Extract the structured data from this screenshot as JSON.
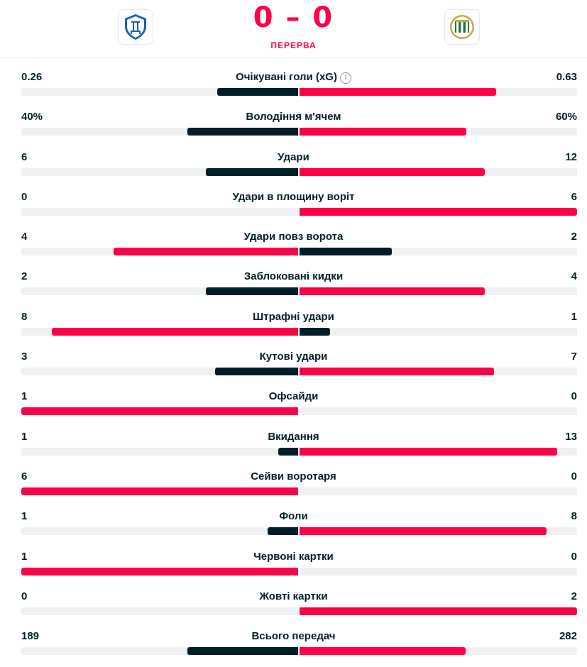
{
  "header": {
    "score": "0 – 0",
    "status": "ПЕРЕРВА",
    "home_logo": "dynamo-kyiv-logo-icon",
    "away_logo": "ferencvaros-logo-icon"
  },
  "colors": {
    "winner": "#ff0046",
    "loser": "#001e28",
    "track": "#eef0f1"
  },
  "stats": [
    {
      "label": "Очікувані голи (xG)",
      "home": "0.26",
      "away": "0.63",
      "home_val": 0.26,
      "away_val": 0.63,
      "info": true
    },
    {
      "label": "Володіння м'ячем",
      "home": "40%",
      "away": "60%",
      "home_val": 40,
      "away_val": 60
    },
    {
      "label": "Удари",
      "home": "6",
      "away": "12",
      "home_val": 6,
      "away_val": 12
    },
    {
      "label": "Удари в площину воріт",
      "home": "0",
      "away": "6",
      "home_val": 0,
      "away_val": 6
    },
    {
      "label": "Удари повз ворота",
      "home": "4",
      "away": "2",
      "home_val": 4,
      "away_val": 2
    },
    {
      "label": "Заблоковані кидки",
      "home": "2",
      "away": "4",
      "home_val": 2,
      "away_val": 4
    },
    {
      "label": "Штрафні удари",
      "home": "8",
      "away": "1",
      "home_val": 8,
      "away_val": 1
    },
    {
      "label": "Кутові удари",
      "home": "3",
      "away": "7",
      "home_val": 3,
      "away_val": 7
    },
    {
      "label": "Офсайди",
      "home": "1",
      "away": "0",
      "home_val": 1,
      "away_val": 0
    },
    {
      "label": "Вкидання",
      "home": "1",
      "away": "13",
      "home_val": 1,
      "away_val": 13
    },
    {
      "label": "Сейви воротаря",
      "home": "6",
      "away": "0",
      "home_val": 6,
      "away_val": 0
    },
    {
      "label": "Фоли",
      "home": "1",
      "away": "8",
      "home_val": 1,
      "away_val": 8
    },
    {
      "label": "Червоні картки",
      "home": "1",
      "away": "0",
      "home_val": 1,
      "away_val": 0
    },
    {
      "label": "Жовті картки",
      "home": "0",
      "away": "2",
      "home_val": 0,
      "away_val": 2
    },
    {
      "label": "Всього передач",
      "home": "189",
      "away": "282",
      "home_val": 189,
      "away_val": 282
    }
  ]
}
